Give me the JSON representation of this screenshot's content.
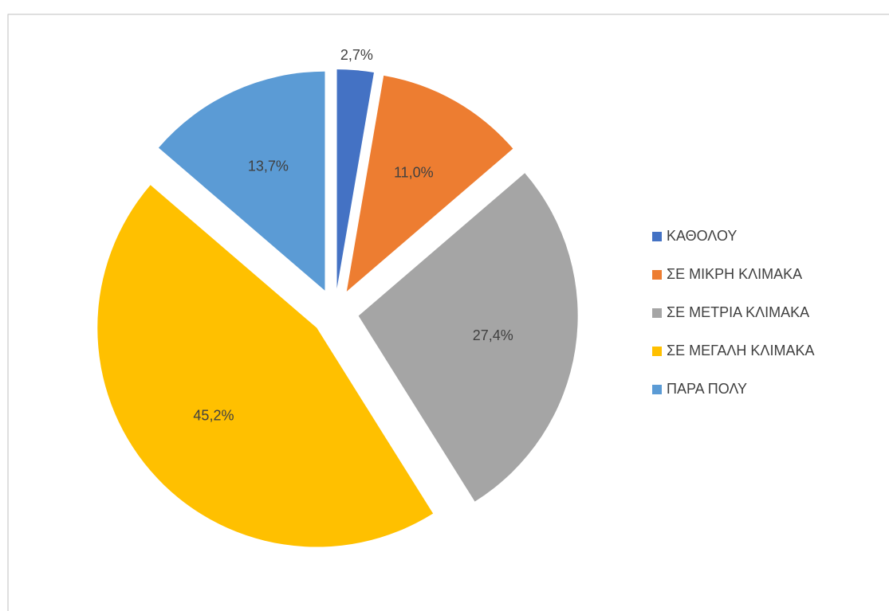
{
  "chart_data": {
    "type": "pie",
    "categories": [
      "ΚΑΘΟΛΟΥ",
      "ΣΕ ΜΙΚΡΗ ΚΛΙΜΑΚΑ",
      "ΣΕ ΜΕΤΡΙΑ ΚΛΙΜΑΚΑ",
      "ΣΕ ΜΕΓΑΛΗ ΚΛΙΜΑΚΑ",
      "ΠΑΡΑ ΠΟΛΥ"
    ],
    "values": [
      2.7,
      11.0,
      27.4,
      45.2,
      13.7
    ],
    "value_labels": [
      "2,7%",
      "11,0%",
      "27,4%",
      "45,2%",
      "13,7%"
    ],
    "colors": [
      "#4472c4",
      "#ed7d31",
      "#a5a5a5",
      "#ffc000",
      "#5b9bd5"
    ],
    "legend": "right"
  }
}
